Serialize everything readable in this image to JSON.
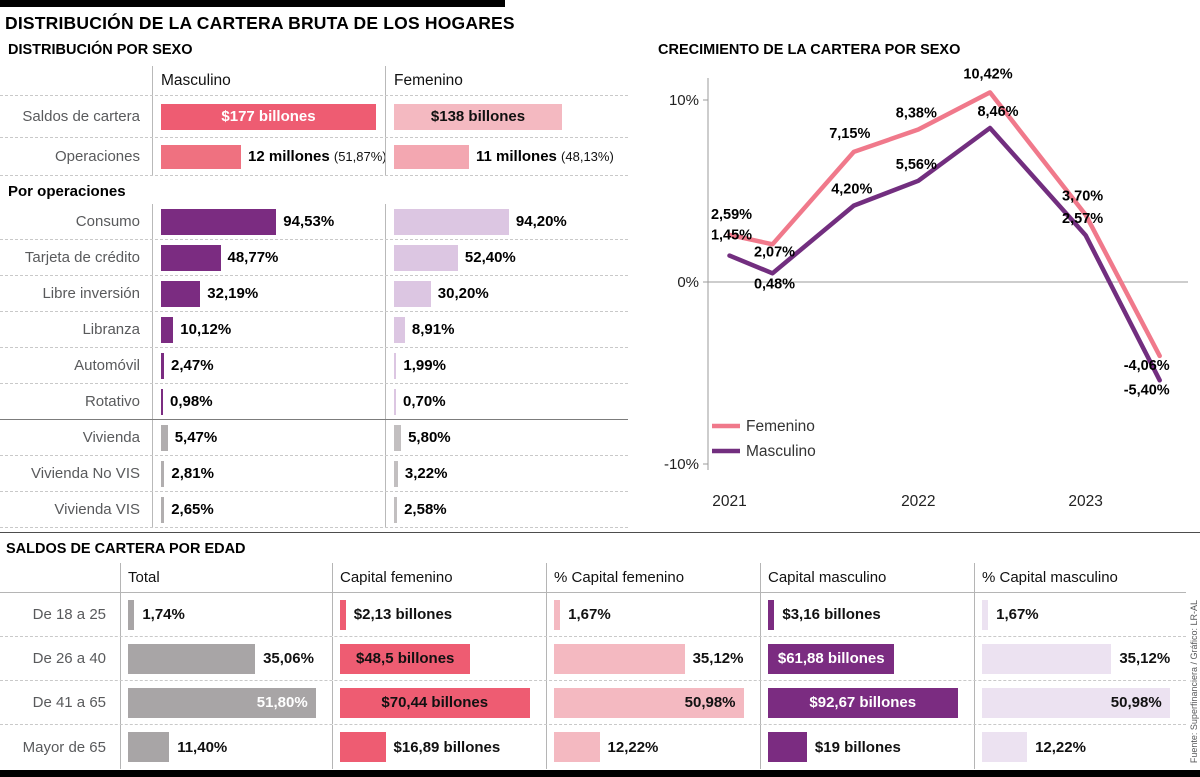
{
  "title": "DISTRIBUCIÓN DE LA CARTERA BRUTA DE LOS HOGARES",
  "source": "Fuente: Superfinanciera / Gráfico: LR-AL",
  "colors": {
    "pink_strong": "#ee5c72",
    "pink_medium": "#ef7180",
    "pink_soft": "#f3a7b1",
    "pink_light": "#f4b9c1",
    "purple_dark": "#7b2c81",
    "purple_light": "#dcc6e2",
    "purple_pale": "#ece2f1",
    "gray_bar": "#a8a5a6",
    "line_femenino": "#f0798b",
    "line_masculino": "#722e7f"
  },
  "chart_data": [
    {
      "type": "bar",
      "title": "DISTRIBUCIÓN POR SEXO",
      "columns": [
        "Masculino",
        "Femenino"
      ],
      "saldos": {
        "label": "Saldos de cartera",
        "masculino": {
          "text": "$177 billones",
          "value": 177
        },
        "femenino": {
          "text": "$138 billones",
          "value": 138
        }
      },
      "operaciones": {
        "label": "Operaciones",
        "masculino": {
          "text": "12 millones",
          "share": "(51,87%)",
          "value": 51.87
        },
        "femenino": {
          "text": "11 millones",
          "share": "(48,13%)",
          "value": 48.13
        }
      },
      "subtitle": "Por operaciones",
      "unit": "%",
      "group_colors": {
        "credito": {
          "masculino": "#7b2c81",
          "femenino": "#dcc6e2"
        },
        "vivienda": {
          "masculino": "#b1aeaf",
          "femenino": "#c2bfc0"
        }
      },
      "rows": [
        {
          "label": "Consumo",
          "masculino": 94.53,
          "masculino_text": "94,53%",
          "femenino": 94.2,
          "femenino_text": "94,20%",
          "group": "credito"
        },
        {
          "label": "Tarjeta de crédito",
          "masculino": 48.77,
          "masculino_text": "48,77%",
          "femenino": 52.4,
          "femenino_text": "52,40%",
          "group": "credito"
        },
        {
          "label": "Libre inversión",
          "masculino": 32.19,
          "masculino_text": "32,19%",
          "femenino": 30.2,
          "femenino_text": "30,20%",
          "group": "credito"
        },
        {
          "label": "Libranza",
          "masculino": 10.12,
          "masculino_text": "10,12%",
          "femenino": 8.91,
          "femenino_text": "8,91%",
          "group": "credito"
        },
        {
          "label": "Automóvil",
          "masculino": 2.47,
          "masculino_text": "2,47%",
          "femenino": 1.99,
          "femenino_text": "1,99%",
          "group": "credito"
        },
        {
          "label": "Rotativo",
          "masculino": 0.98,
          "masculino_text": "0,98%",
          "femenino": 0.7,
          "femenino_text": "0,70%",
          "group": "credito",
          "divider_after": true
        },
        {
          "label": "Vivienda",
          "masculino": 5.47,
          "masculino_text": "5,47%",
          "femenino": 5.8,
          "femenino_text": "5,80%",
          "group": "vivienda"
        },
        {
          "label": "Vivienda No VIS",
          "masculino": 2.81,
          "masculino_text": "2,81%",
          "femenino": 3.22,
          "femenino_text": "3,22%",
          "group": "vivienda"
        },
        {
          "label": "Vivienda VIS",
          "masculino": 2.65,
          "masculino_text": "2,65%",
          "femenino": 2.58,
          "femenino_text": "2,58%",
          "group": "vivienda"
        }
      ]
    },
    {
      "type": "line",
      "title": "CRECIMIENTO DE LA CARTERA POR SEXO",
      "x_tick_labels": [
        "2021",
        "2022",
        "2023"
      ],
      "y_tick_labels": [
        "10%",
        "0%",
        "-10%"
      ],
      "y_tick_values": [
        10,
        0,
        -10
      ],
      "ylim": [
        -10,
        11.5
      ],
      "grid": "zero-line-only",
      "legend_position": "bottom-left",
      "series": [
        {
          "name": "Femenino",
          "color": "#f0798b",
          "values": [
            2.59,
            2.07,
            7.15,
            8.38,
            10.42,
            3.7,
            -4.06
          ],
          "point_labels": [
            "2,59%",
            "2,07%",
            "7,15%",
            "8,38%",
            "10,42%",
            "3,70%",
            "-4,06%"
          ]
        },
        {
          "name": "Masculino",
          "color": "#722e7f",
          "values": [
            1.45,
            0.48,
            4.2,
            5.56,
            8.46,
            2.57,
            -5.4
          ],
          "point_labels": [
            "1,45%",
            "0,48%",
            "4,20%",
            "5,56%",
            "8,46%",
            "2,57%",
            "-5,40%"
          ]
        }
      ]
    },
    {
      "type": "table",
      "title": "SALDOS DE CARTERA POR EDAD",
      "columns": [
        "Total",
        "Capital femenino",
        "% Capital femenino",
        "Capital masculino",
        "% Capital masculino"
      ],
      "column_colors": [
        "#a8a5a6",
        "#ee5c72",
        "#f4b9c1",
        "#7b2c81",
        "#ece2f1"
      ],
      "rows": [
        {
          "label": "De 18 a 25",
          "cells": [
            {
              "text": "1,74%",
              "value": 1.74
            },
            {
              "text": "$2,13 billones",
              "value": 2.13
            },
            {
              "text": "1,67%",
              "value": 1.67
            },
            {
              "text": "$3,16 billones",
              "value": 3.16
            },
            {
              "text": "1,67%",
              "value": 1.67
            }
          ]
        },
        {
          "label": "De 26 a 40",
          "cells": [
            {
              "text": "35,06%",
              "value": 35.06
            },
            {
              "text": "$48,5 billones",
              "value": 48.5,
              "inside": true
            },
            {
              "text": "35,12%",
              "value": 35.12
            },
            {
              "text": "$61,88 billones",
              "value": 61.88,
              "inside": true,
              "light_text": true
            },
            {
              "text": "35,12%",
              "value": 35.12
            }
          ]
        },
        {
          "label": "De 41 a 65",
          "cells": [
            {
              "text": "51,80%",
              "value": 51.8,
              "inside": true,
              "light_text": true
            },
            {
              "text": "$70,44 billones",
              "value": 70.44,
              "inside": true
            },
            {
              "text": "50,98%",
              "value": 50.98,
              "inside": true
            },
            {
              "text": "$92,67 billones",
              "value": 92.67,
              "inside": true,
              "light_text": true
            },
            {
              "text": "50,98%",
              "value": 50.98,
              "inside": true
            }
          ]
        },
        {
          "label": "Mayor de 65",
          "cells": [
            {
              "text": "11,40%",
              "value": 11.4
            },
            {
              "text": "$16,89 billones",
              "value": 16.89
            },
            {
              "text": "12,22%",
              "value": 12.22
            },
            {
              "text": "$19 billones",
              "value": 19
            },
            {
              "text": "12,22%",
              "value": 12.22
            }
          ]
        }
      ]
    }
  ]
}
